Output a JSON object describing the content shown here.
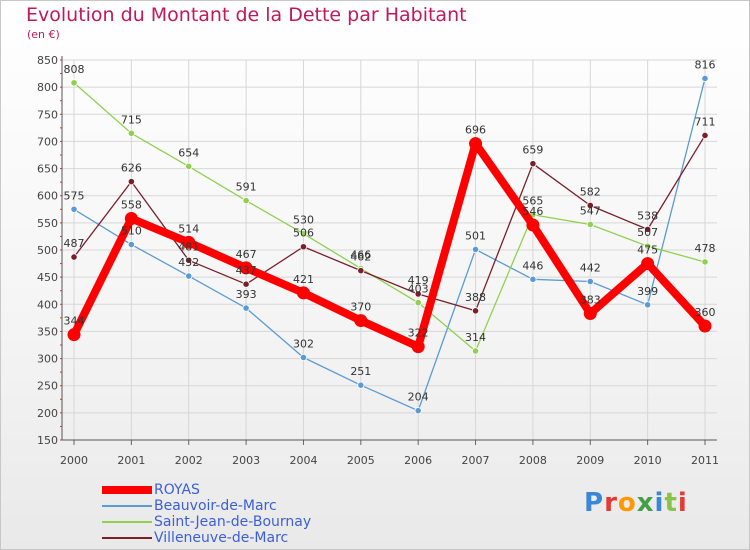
{
  "chart_data": {
    "type": "line",
    "title": "Evolution du Montant de la Dette par Habitant",
    "unit": "(en €)",
    "ylim": [
      150,
      850
    ],
    "yticks": [
      150,
      200,
      250,
      300,
      350,
      400,
      450,
      500,
      550,
      600,
      650,
      700,
      750,
      800,
      850
    ],
    "categories": [
      "2000",
      "2001",
      "2002",
      "2003",
      "2004",
      "2005",
      "2006",
      "2007",
      "2008",
      "2009",
      "2010",
      "2011"
    ],
    "grid": true,
    "legend_position": "bottom-left",
    "series": [
      {
        "name": "Beauvoir-de-Marc",
        "color": "#5b9bd5",
        "values": [
          575,
          510,
          452,
          393,
          302,
          251,
          204,
          501,
          446,
          442,
          399,
          816
        ],
        "labels": [
          "575",
          "510",
          "452",
          "393",
          "302",
          "251",
          "204",
          "501",
          "446",
          "442",
          "399",
          "816"
        ]
      },
      {
        "name": "Saint-Jean-de-Bournay",
        "color": "#8fd14f",
        "values": [
          808,
          715,
          654,
          591,
          530,
          466,
          403,
          314,
          565,
          547,
          507,
          478
        ],
        "labels": [
          "808",
          "715",
          "654",
          "591",
          "530",
          "466",
          "403",
          "314",
          "565",
          "547",
          "507",
          "478"
        ]
      },
      {
        "name": "Villeneuve-de-Marc",
        "color": "#7a1f2a",
        "values": [
          487,
          626,
          481,
          437,
          506,
          462,
          419,
          388,
          659,
          582,
          538,
          711
        ],
        "labels": [
          "487",
          "626",
          "481",
          "437",
          "506",
          "462",
          "419",
          "388",
          "659",
          "582",
          "538",
          "711"
        ]
      },
      {
        "name": "ROYAS",
        "color": "#ff0000",
        "values": [
          344,
          558,
          514,
          467,
          421,
          370,
          322,
          696,
          546,
          383,
          475,
          360
        ],
        "labels": [
          "344",
          "558",
          "514",
          "467",
          "421",
          "370",
          "322",
          "696",
          "546",
          "383",
          "475",
          "360"
        ]
      }
    ],
    "legend": [
      "ROYAS",
      "Beauvoir-de-Marc",
      "Saint-Jean-de-Bournay",
      "Villeneuve-de-Marc"
    ]
  },
  "logo": {
    "text": "Proxiti",
    "colors": [
      "#3a86d8",
      "#e53935",
      "#ff9800",
      "#43a047",
      "#3a86d8",
      "#8bc34a",
      "#e53935"
    ]
  }
}
